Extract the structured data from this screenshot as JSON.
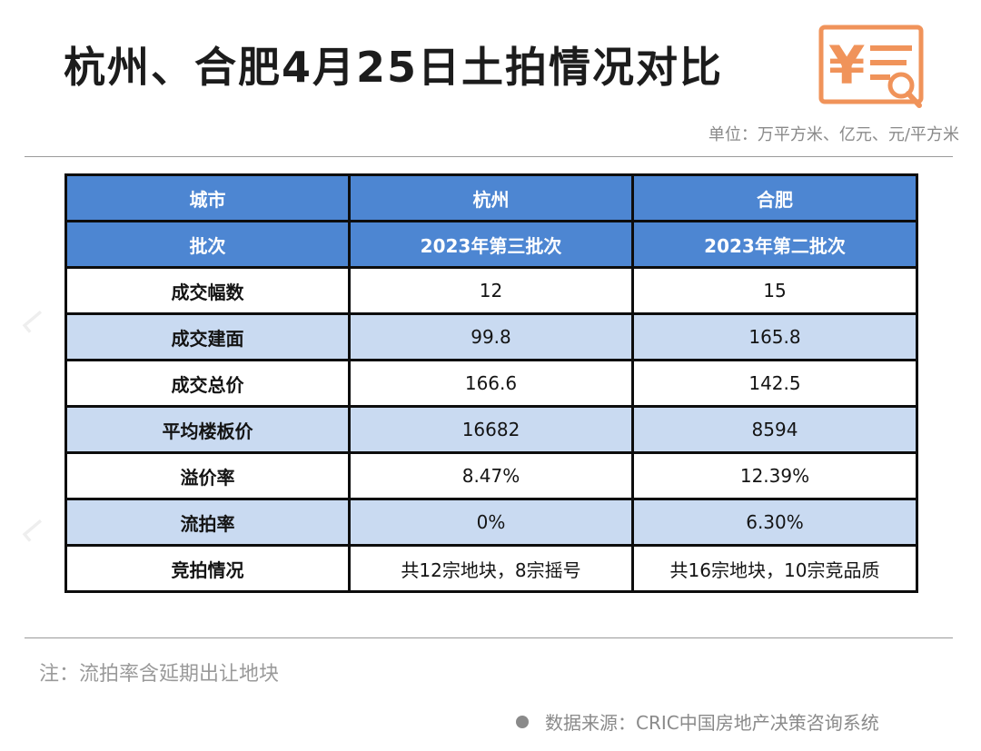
{
  "title": "杭州、合肥4月25日土拍情况对比",
  "unit_note": "单位：万平方米、亿元、元/平方米",
  "logo": {
    "icon": "yuan-document-search-icon",
    "color": "#f0935a",
    "text": "¥"
  },
  "table": {
    "header_rows": [
      [
        "城市",
        "杭州",
        "合肥"
      ],
      [
        "批次",
        "2023年第三批次",
        "2023年第二批次"
      ]
    ],
    "rows": [
      [
        "成交幅数",
        "12",
        "15"
      ],
      [
        "成交建面",
        "99.8",
        "165.8"
      ],
      [
        "成交总价",
        "166.6",
        "142.5"
      ],
      [
        "平均楼板价",
        "16682",
        "8594"
      ],
      [
        "溢价率",
        "8.47%",
        "12.39%"
      ],
      [
        "流拍率",
        "0%",
        "6.30%"
      ],
      [
        "竞拍情况",
        "共12宗地块，8宗摇号",
        "共16宗地块，10宗竞品质"
      ]
    ],
    "colors": {
      "header": "#4d86d2",
      "shaded": "#c9daf1",
      "border": "#0d0d0d"
    }
  },
  "footnote": "注：流拍率含延期出让地块",
  "source": "数据来源：CRIC中国房地产决策咨询系统"
}
